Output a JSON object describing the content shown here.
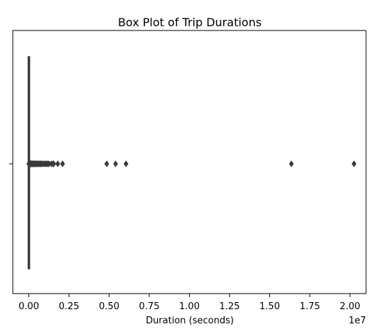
{
  "chart_data": {
    "type": "box",
    "title": "Box Plot of Trip Durations",
    "xlabel": "Duration (seconds)",
    "ylabel": "",
    "x_offset_label": "1e7",
    "xlim": [
      -0.1,
      2.1
    ],
    "x_ticks": [
      0.0,
      0.25,
      0.5,
      0.75,
      1.0,
      1.25,
      1.5,
      1.75,
      2.0
    ],
    "x_tick_labels": [
      "0.00",
      "0.25",
      "0.50",
      "0.75",
      "1.00",
      "1.25",
      "1.50",
      "1.75",
      "2.00"
    ],
    "grid": false,
    "box": {
      "min": 0.0,
      "q1": 0.0003,
      "median": 0.0006,
      "q3": 0.0011,
      "whisker_high": 0.0024
    },
    "outliers": [
      0.003,
      0.005,
      0.008,
      0.011,
      0.014,
      0.017,
      0.02,
      0.024,
      0.028,
      0.032,
      0.036,
      0.04,
      0.045,
      0.05,
      0.056,
      0.062,
      0.068,
      0.075,
      0.082,
      0.09,
      0.1,
      0.11,
      0.12,
      0.13,
      0.15,
      0.16,
      0.18,
      0.2,
      0.22,
      0.24,
      0.26,
      0.29,
      0.32,
      0.35,
      0.38,
      0.42,
      0.45,
      0.48,
      0.52,
      0.56,
      0.6,
      0.65,
      0.7,
      0.75,
      0.8,
      0.85,
      0.92,
      1.0,
      1.05,
      1.12,
      1.18,
      1.25,
      1.4,
      1.5,
      1.55,
      1.8,
      2.1,
      4.85,
      5.4,
      6.05,
      16.35,
      20.25
    ],
    "outlier_units_scale": 0.1,
    "colors": {
      "box": "#3b3b3b",
      "marker": "#3b3b3b",
      "axis": "#000000"
    }
  }
}
